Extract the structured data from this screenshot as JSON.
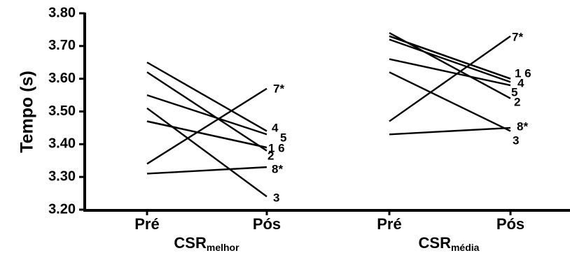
{
  "chart_data": {
    "type": "line",
    "ylabel": "Tempo (s)",
    "ylim": [
      3.2,
      3.8
    ],
    "yticks": [
      "3.20",
      "3.30",
      "3.40",
      "3.50",
      "3.60",
      "3.70",
      "3.80"
    ],
    "grid": false,
    "panels": [
      {
        "group_label": "CSR",
        "group_sub": "melhor",
        "categories": [
          "Pré",
          "Pós"
        ],
        "series": [
          {
            "name": "1",
            "values": [
              3.47,
              3.39
            ]
          },
          {
            "name": "2",
            "values": [
              3.62,
              3.38
            ]
          },
          {
            "name": "3",
            "values": [
              3.51,
              3.24
            ]
          },
          {
            "name": "4",
            "values": [
              3.65,
              3.44
            ]
          },
          {
            "name": "5",
            "values": [
              3.55,
              3.43
            ]
          },
          {
            "name": "6",
            "values": [
              3.47,
              3.39
            ]
          },
          {
            "name": "7*",
            "values": [
              3.34,
              3.57
            ]
          },
          {
            "name": "8*",
            "values": [
              3.31,
              3.33
            ]
          }
        ],
        "point_labels": [
          "7*",
          "4",
          "5",
          "1 6",
          "2",
          "8*",
          "3"
        ]
      },
      {
        "group_label": "CSR",
        "group_sub": "média",
        "categories": [
          "Pré",
          "Pós"
        ],
        "series": [
          {
            "name": "1",
            "values": [
              3.73,
              3.6
            ]
          },
          {
            "name": "2",
            "values": [
              3.74,
              3.54
            ]
          },
          {
            "name": "3",
            "values": [
              3.62,
              3.44
            ]
          },
          {
            "name": "4",
            "values": [
              3.72,
              3.59
            ]
          },
          {
            "name": "5",
            "values": [
              3.66,
              3.58
            ]
          },
          {
            "name": "6",
            "values": [
              3.73,
              3.6
            ]
          },
          {
            "name": "7*",
            "values": [
              3.47,
              3.73
            ]
          },
          {
            "name": "8*",
            "values": [
              3.43,
              3.45
            ]
          }
        ],
        "point_labels": [
          "7*",
          "1 6",
          "4",
          "5",
          "2",
          "8*",
          "3"
        ]
      }
    ]
  }
}
